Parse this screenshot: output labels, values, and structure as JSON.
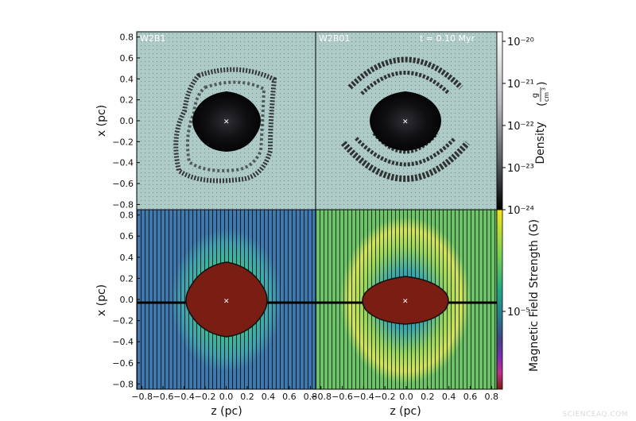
{
  "panels": {
    "top_left_label": "W2B1",
    "top_right_label": "W2B01",
    "time_label": "t = 0.10 Myr"
  },
  "axes": {
    "xlabel": "z  (pc)",
    "ylabel": "x  (pc)",
    "ticks": [
      "0.8",
      "0.6",
      "0.4",
      "0.2",
      "0.0",
      "0.2",
      "0.4",
      "0.6",
      "0.8"
    ],
    "tick_values": [
      -0.8,
      -0.6,
      -0.4,
      -0.2,
      0.0,
      0.2,
      0.4,
      0.6,
      0.8
    ],
    "tick_signs": [
      "−0.8",
      "−0.6",
      "−0.4",
      "−0.2",
      "0.0",
      "0.2",
      "0.4",
      "0.6",
      "0.8"
    ],
    "range": [
      -0.85,
      0.85
    ]
  },
  "colorbars": {
    "density_label": "Density",
    "density_unit_num": "g",
    "density_unit_den": "cm",
    "density_unit_exp": "3",
    "density_ticks": [
      "10⁻²⁰",
      "10⁻²¹",
      "10⁻²²",
      "10⁻²³",
      "10⁻²⁴"
    ],
    "field_label": "Magnetic Field Strength  (G)",
    "field_tick": "10⁻⁵"
  },
  "colors": {
    "density_bg": "#aecbc8",
    "field_left_bg": "#3e79b0",
    "field_right_bg": "#6fc36a",
    "core_red": "#7a1d12",
    "core_dark": "#0b0b0d"
  },
  "watermark": "SCIENCEAQ.COM"
}
